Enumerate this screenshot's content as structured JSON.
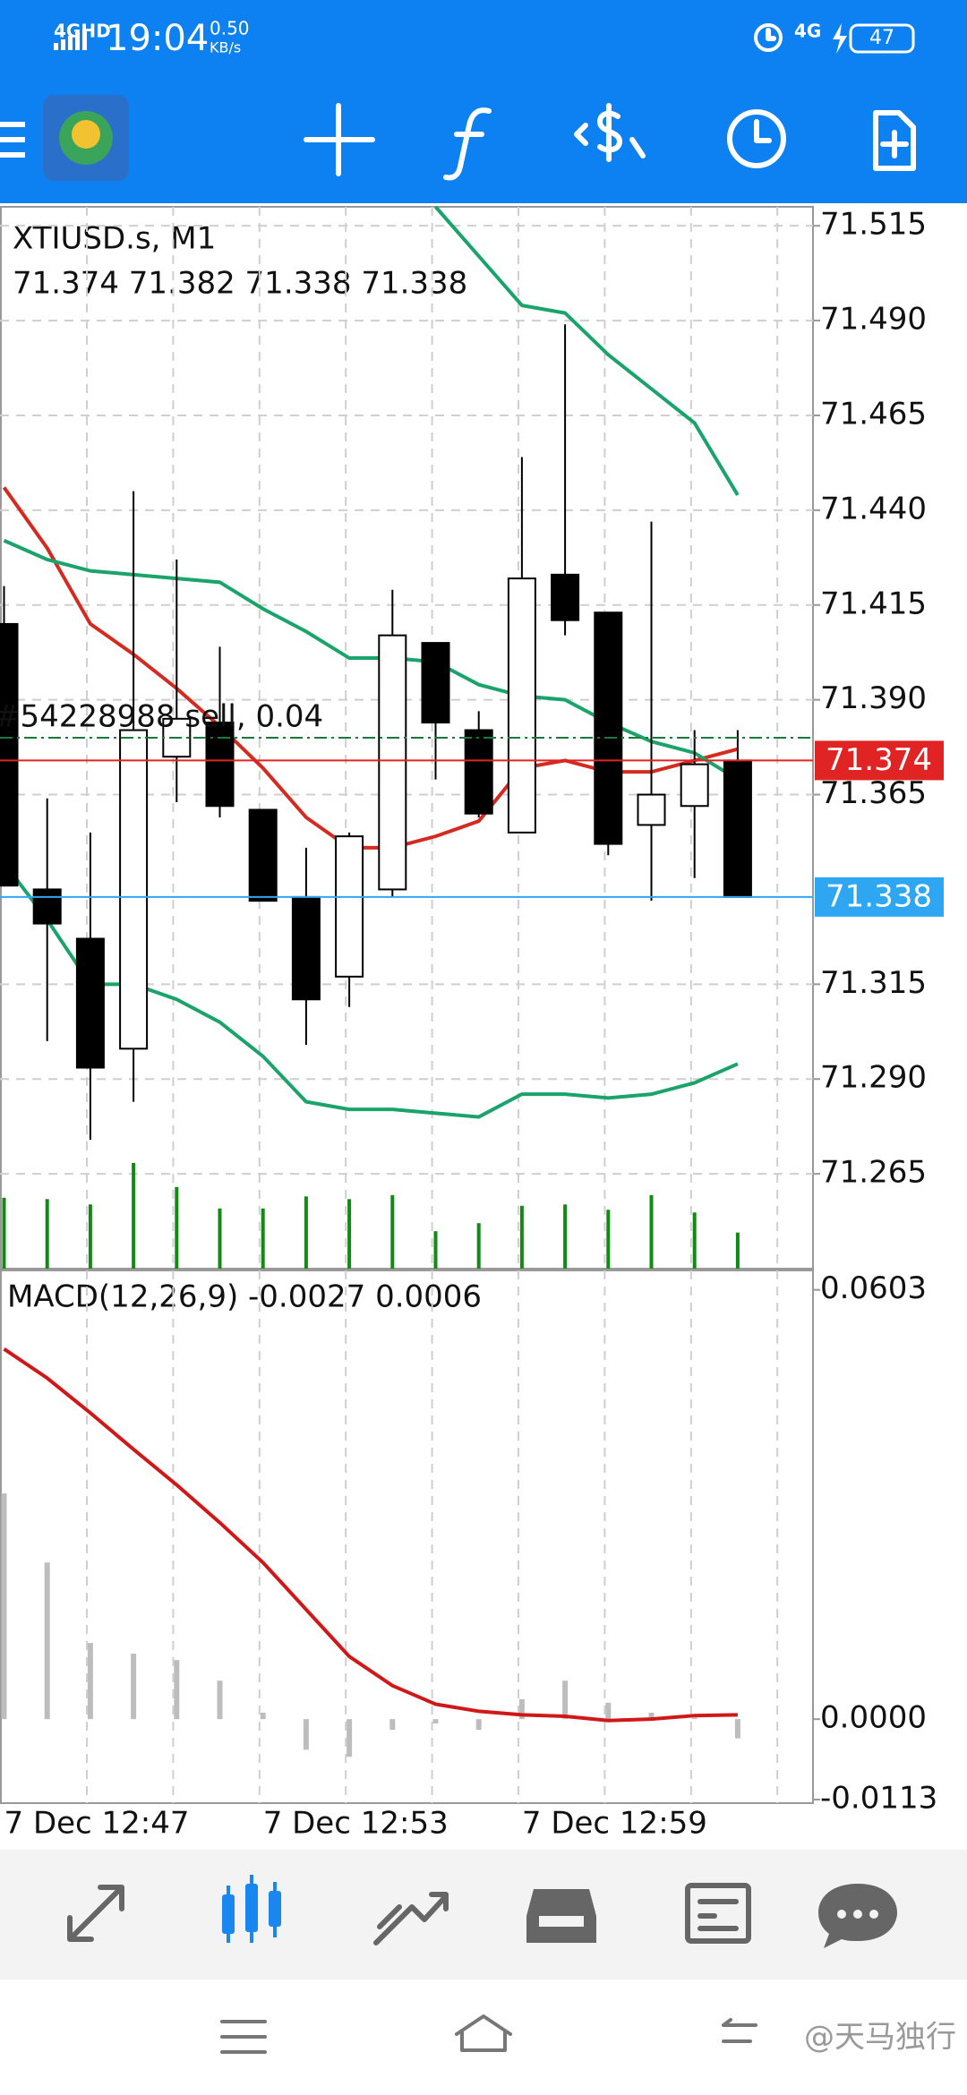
{
  "status_bar": {
    "network": "4GHD",
    "time": "19:04",
    "speed": "0.50",
    "speed_unit": "KB/s",
    "network_right": "4G",
    "battery": "47"
  },
  "chart_data": [
    {
      "type": "candlestick",
      "title": "XTIUSD.s, M1",
      "ohlc_text": "71.374 71.382 71.338 71.338",
      "categories": [
        "7 Dec 12:47",
        null,
        null,
        null,
        null,
        null,
        "7 Dec 12:53",
        null,
        null,
        null,
        null,
        null,
        "7 Dec 12:59",
        null,
        null,
        null,
        null,
        null
      ],
      "open": [
        71.41,
        71.34,
        71.327,
        71.298,
        71.375,
        71.384,
        71.361,
        71.338,
        71.317,
        71.34,
        71.405,
        71.382,
        71.355,
        71.423,
        71.413,
        71.357,
        71.362,
        71.374
      ],
      "high": [
        71.42,
        71.364,
        71.355,
        71.445,
        71.427,
        71.404,
        71.361,
        71.351,
        71.355,
        71.419,
        71.405,
        71.387,
        71.454,
        71.489,
        71.413,
        71.437,
        71.382,
        71.382
      ],
      "low": [
        71.341,
        71.3,
        71.274,
        71.284,
        71.363,
        71.359,
        71.337,
        71.299,
        71.309,
        71.338,
        71.369,
        71.359,
        71.355,
        71.407,
        71.349,
        71.337,
        71.343,
        71.338
      ],
      "close": [
        71.341,
        71.331,
        71.293,
        71.382,
        71.385,
        71.362,
        71.337,
        71.311,
        71.354,
        71.407,
        71.384,
        71.36,
        71.422,
        71.411,
        71.352,
        71.365,
        71.373,
        71.338
      ],
      "series": [
        {
          "color": "#d42a20",
          "values": [
            71.446,
            71.43,
            71.41,
            71.402,
            71.393,
            71.383,
            71.372,
            71.359,
            71.351,
            71.351,
            71.354,
            71.358,
            71.372,
            71.374,
            71.371,
            71.371,
            71.374,
            71.377
          ]
        },
        {
          "color": "#1aa36a",
          "values": [
            null,
            null,
            null,
            null,
            null,
            null,
            null,
            null,
            null,
            null,
            71.52,
            71.507,
            71.494,
            71.492,
            71.481,
            71.472,
            71.463,
            71.444
          ]
        },
        {
          "color": "#1aa36a",
          "values": [
            71.432,
            71.427,
            71.424,
            71.423,
            71.422,
            71.421,
            71.414,
            71.408,
            71.401,
            71.401,
            71.4,
            71.394,
            71.391,
            71.39,
            71.384,
            71.379,
            71.376,
            71.369
          ]
        },
        {
          "color": "#1aa36a",
          "values": [
            71.347,
            71.332,
            71.315,
            71.315,
            71.311,
            71.305,
            71.296,
            71.284,
            71.282,
            71.282,
            71.281,
            71.28,
            71.286,
            71.286,
            71.285,
            71.286,
            71.289,
            71.294
          ]
        }
      ],
      "volume": {
        "color": "#138a13",
        "values": [
          53,
          52,
          48,
          79,
          61,
          45,
          45,
          54,
          52,
          55,
          28,
          34,
          47,
          48,
          44,
          55,
          42,
          27
        ]
      },
      "ylim": [
        71.24,
        71.52
      ],
      "yticks": [
        71.515,
        {
          "value": 71.49,
          "label": "71.490"
        },
        71.465,
        {
          "value": 71.44,
          "label": "71.440"
        },
        71.415,
        {
          "value": 71.39,
          "label": "71.390"
        },
        71.365,
        71.315,
        {
          "value": 71.29,
          "label": "71.290"
        },
        71.265
      ],
      "grid": true,
      "price_lines": [
        {
          "value": 71.374,
          "color": "#e02424"
        },
        {
          "value": 71.338,
          "color": "#2ea6f2"
        }
      ],
      "order_line": {
        "value": 71.38,
        "label": "#54228988 sell, 0.04",
        "color": "#1a7a3a"
      }
    },
    {
      "type": "macd",
      "title": "MACD(12,26,9) -0.0027 0.0006",
      "values": [
        0.0317,
        0.022,
        0.0107,
        0.0092,
        0.0083,
        0.0054,
        0.0009,
        -0.0043,
        -0.0053,
        -0.0015,
        -0.0006,
        -0.0015,
        0.0028,
        0.0054,
        0.0023,
        0.0009,
        0.0002,
        -0.0027
      ],
      "color": "#bdbdbd",
      "series": [
        {
          "color": "#d01818",
          "values": [
            0.052,
            0.0479,
            0.043,
            0.0379,
            0.0329,
            0.0276,
            0.022,
            0.0154,
            0.0088,
            0.0047,
            0.0021,
            0.0011,
            0.0006,
            0.0004,
            -0.0002,
            0.0,
            0.0005,
            0.0006
          ]
        }
      ],
      "ylim": [
        -0.0118,
        0.0629
      ],
      "yticks": [
        0.0603,
        {
          "value": 0,
          "label": "0.0000"
        },
        -0.0113
      ]
    }
  ],
  "watermark": "@天马独行"
}
